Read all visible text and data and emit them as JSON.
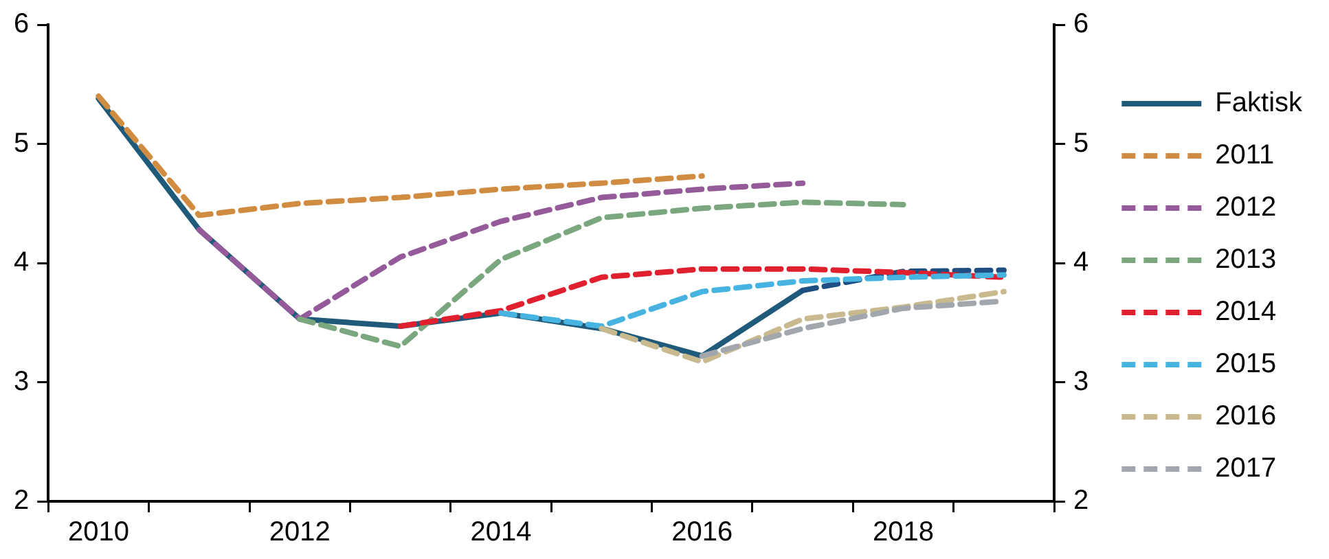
{
  "chart_data": {
    "type": "line",
    "categories": [
      "2010",
      null,
      "2012",
      null,
      "2014",
      null,
      "2016",
      null,
      "2018",
      null
    ],
    "series": [
      {
        "name": "Faktisk",
        "color": "#1f5a7a",
        "line_style": "solid",
        "values": [
          5.38,
          4.28,
          3.53,
          3.47,
          3.58,
          3.45,
          3.22,
          3.77,
          null,
          null
        ]
      },
      {
        "color": "#1f4e82",
        "line_style": "dashed",
        "values": [
          null,
          null,
          null,
          null,
          null,
          null,
          null,
          3.77,
          3.93,
          3.94
        ]
      },
      {
        "name": "2011",
        "color": "#d08c40",
        "line_style": "dashed",
        "values": [
          5.4,
          4.4,
          4.5,
          4.55,
          4.62,
          4.67,
          4.73,
          null,
          null,
          null
        ]
      },
      {
        "name": "2012",
        "color": "#955a9a",
        "line_style": "dashed",
        "values": [
          null,
          4.28,
          3.53,
          4.05,
          4.35,
          4.55,
          4.62,
          4.67,
          null,
          null
        ]
      },
      {
        "name": "2013",
        "color": "#7aa77e",
        "line_style": "dashed",
        "values": [
          null,
          null,
          3.53,
          3.3,
          4.03,
          4.38,
          4.46,
          4.51,
          4.49,
          null
        ]
      },
      {
        "name": "2014",
        "color": "#e0202e",
        "line_style": "dashed",
        "values": [
          null,
          null,
          null,
          3.47,
          3.6,
          3.88,
          3.95,
          3.95,
          3.92,
          3.88
        ]
      },
      {
        "name": "2015",
        "color": "#46b3e0",
        "line_style": "dashed",
        "values": [
          null,
          null,
          null,
          null,
          3.58,
          3.47,
          3.76,
          3.85,
          3.88,
          3.9
        ]
      },
      {
        "name": "2016",
        "color": "#c8b98e",
        "line_style": "dashed",
        "values": [
          null,
          null,
          null,
          null,
          null,
          3.45,
          3.17,
          3.53,
          3.63,
          3.76
        ]
      },
      {
        "name": "2017",
        "color": "#a2a7ae",
        "line_style": "dashed",
        "values": [
          null,
          null,
          null,
          null,
          null,
          null,
          3.22,
          3.45,
          3.62,
          3.68
        ]
      }
    ],
    "ylim": [
      2,
      6
    ],
    "yticks": [
      2,
      3,
      4,
      5,
      6
    ],
    "y2lim": [
      2,
      6
    ],
    "y2ticks": [
      2,
      3,
      4,
      5,
      6
    ],
    "grid": false,
    "legend": "right",
    "marker": "none"
  }
}
